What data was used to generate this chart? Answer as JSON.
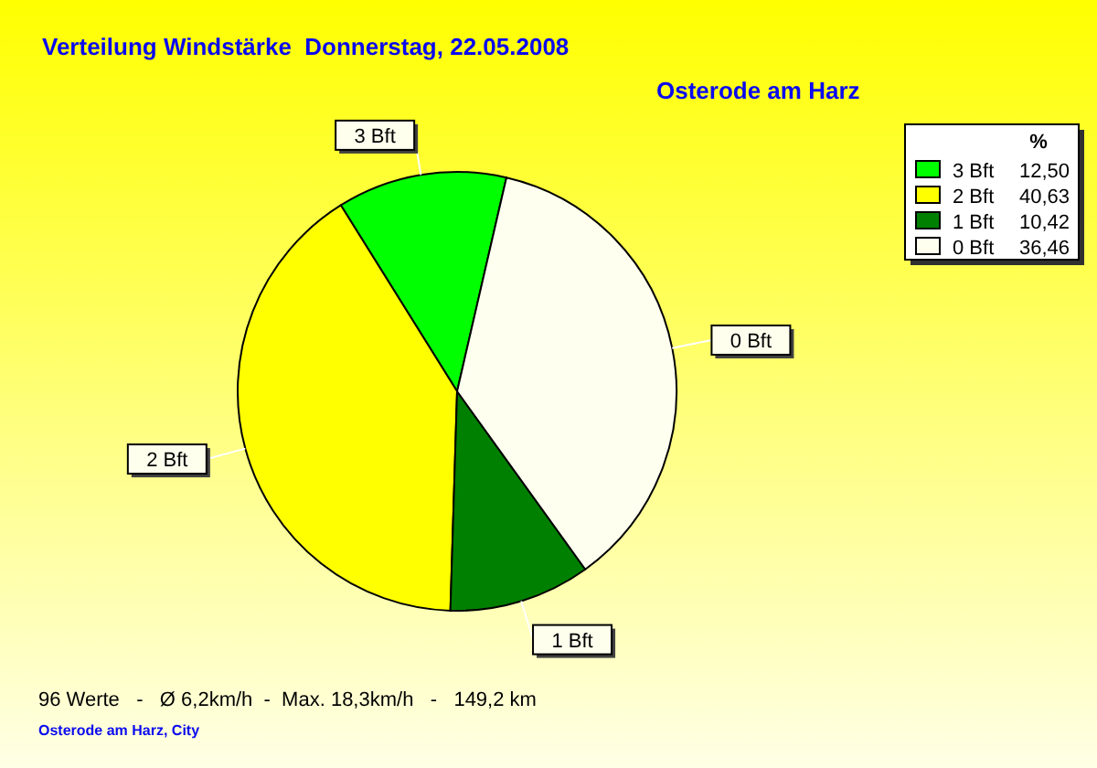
{
  "chart_data": {
    "type": "pie",
    "title": "Verteilung Windstärke  Donnerstag, 22.05.2008",
    "subtitle": "Osterode am Harz",
    "categories": [
      "3 Bft",
      "2 Bft",
      "1 Bft",
      "0 Bft"
    ],
    "values": [
      12.5,
      40.63,
      10.42,
      36.46
    ],
    "value_labels": [
      "12,50",
      "40,63",
      "10,42",
      "36,46"
    ],
    "colors": [
      "#00ff00",
      "#ffff00",
      "#008000",
      "#fffff0"
    ],
    "legend": "top right",
    "legend_title": "%",
    "annotations": [
      "96 Werte   -   Ø 6,2km/h  -  Max. 18,3km/h   -   149,2 km",
      "Osterode am Harz, City"
    ]
  }
}
